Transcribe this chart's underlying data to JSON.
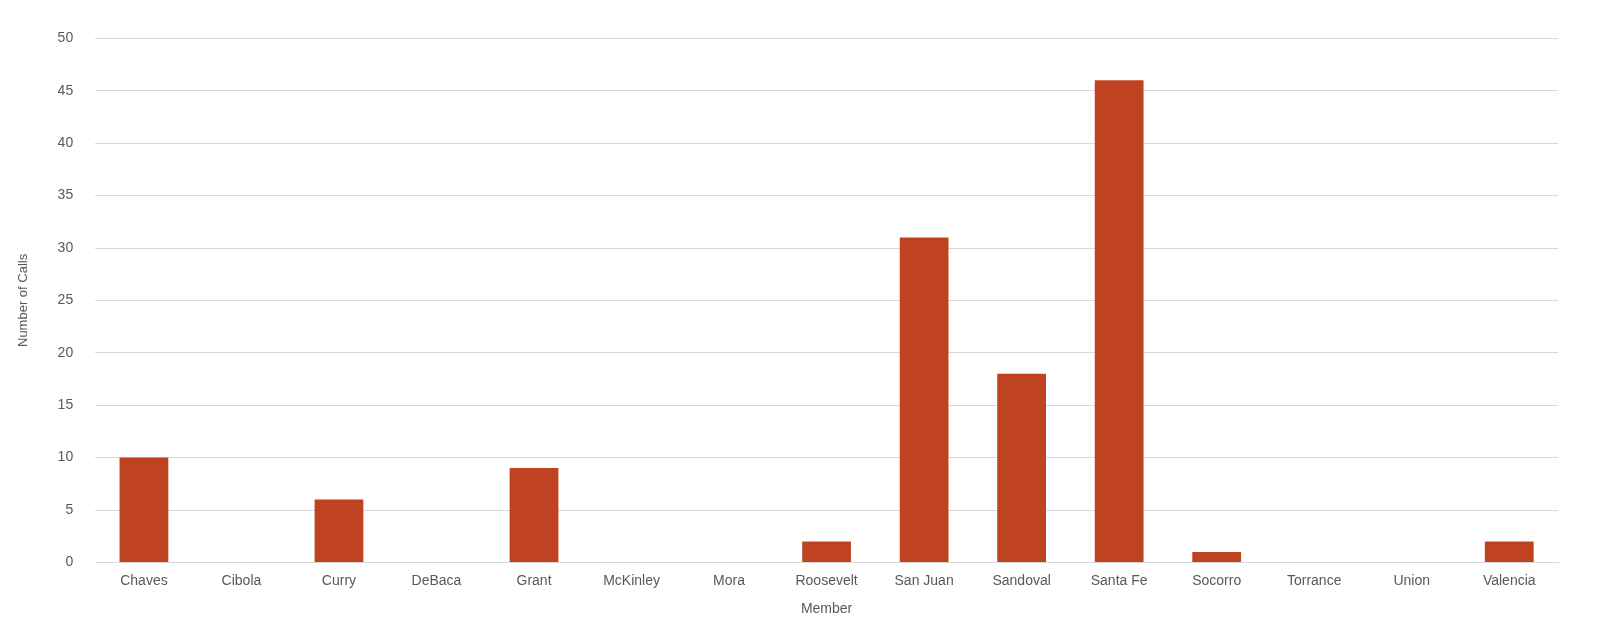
{
  "chart_data": {
    "type": "bar",
    "xlabel": "Member",
    "ylabel": "Number of Calls",
    "categories": [
      "Chaves",
      "Cibola",
      "Curry",
      "DeBaca",
      "Grant",
      "McKinley",
      "Mora",
      "Roosevelt",
      "San Juan",
      "Sandoval",
      "Santa Fe",
      "Socorro",
      "Torrance",
      "Union",
      "Valencia"
    ],
    "values": [
      10,
      0,
      6,
      0,
      9,
      0,
      0,
      2,
      31,
      18,
      46,
      1,
      0,
      0,
      2
    ],
    "color": "#bf4320",
    "ylim": [
      0,
      50
    ],
    "yticks": [
      0,
      5,
      10,
      15,
      20,
      25,
      30,
      35,
      40,
      45,
      50
    ],
    "grid": "y",
    "legend": false
  }
}
